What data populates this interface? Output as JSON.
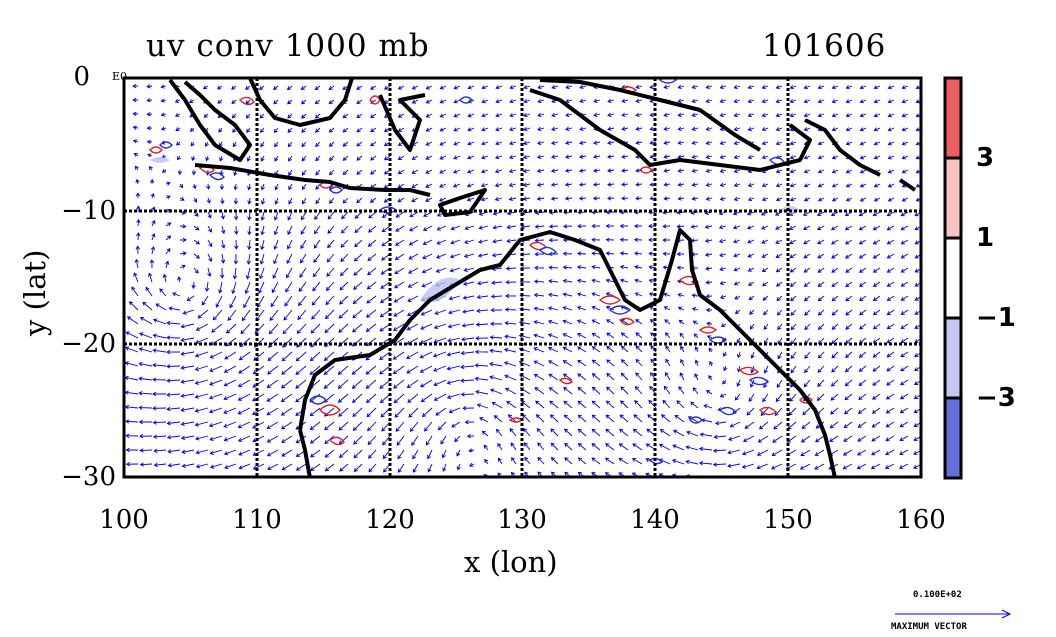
{
  "title": {
    "left": "uv conv 1000 mb",
    "right": "101606"
  },
  "axes": {
    "xlabel": "x (lon)",
    "ylabel": "y (lat)",
    "xticks": [
      "100",
      "110",
      "120",
      "130",
      "140",
      "150",
      "160"
    ],
    "yticks": [
      "0",
      "−10",
      "−20",
      "−30"
    ],
    "corner_label": "E0"
  },
  "colorbar": {
    "ticks": [
      "3",
      "1",
      "−1",
      "−3"
    ],
    "colors": [
      "#ec5f5f",
      "#f7c3c3",
      "#ffffff",
      "#c3c8f2",
      "#6570dc"
    ]
  },
  "vector_key": {
    "value": "0.100E+02",
    "label": "MAXIMUM VECTOR"
  },
  "chart_data": {
    "type": "map",
    "title": "uv conv 1000 mb",
    "subtitle": "101606",
    "xlabel": "x (lon)",
    "ylabel": "y (lat)",
    "xlim": [
      100,
      160
    ],
    "ylim": [
      -30,
      0
    ],
    "grid": true,
    "layers": [
      "wind vectors",
      "convergence contours",
      "coastline"
    ],
    "colorbar_levels": [
      3,
      1,
      -1,
      -3
    ],
    "colors": {
      "vectors": "#0000ee",
      "positive": "#e02020",
      "negative": "#2030e0",
      "coast": "#000000"
    }
  }
}
